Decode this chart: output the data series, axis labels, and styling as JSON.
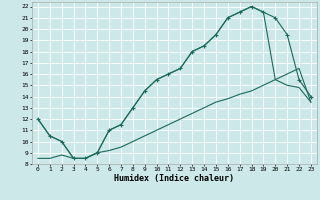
{
  "xlabel": "Humidex (Indice chaleur)",
  "bg_color": "#cce8e8",
  "grid_color": "#ffffff",
  "line_color": "#1a6b5a",
  "xlim": [
    -0.5,
    23.5
  ],
  "ylim": [
    8,
    22.4
  ],
  "xticks": [
    0,
    1,
    2,
    3,
    4,
    5,
    6,
    7,
    8,
    9,
    10,
    11,
    12,
    13,
    14,
    15,
    16,
    17,
    18,
    19,
    20,
    21,
    22,
    23
  ],
  "yticks": [
    8,
    9,
    10,
    11,
    12,
    13,
    14,
    15,
    16,
    17,
    18,
    19,
    20,
    21,
    22
  ],
  "line1_x": [
    0,
    1,
    2,
    3,
    4,
    5,
    6,
    7,
    8,
    9,
    10,
    11,
    12,
    13,
    14,
    15,
    16,
    17,
    18,
    19,
    20,
    21,
    22,
    23
  ],
  "line1_y": [
    12,
    10.5,
    10,
    8.5,
    8.5,
    9.0,
    11.0,
    11.5,
    13.0,
    14.5,
    15.5,
    16.0,
    16.5,
    18.0,
    18.5,
    19.5,
    21.0,
    21.5,
    22.0,
    21.5,
    21.0,
    19.5,
    15.5,
    14.0
  ],
  "line2_x": [
    0,
    1,
    2,
    3,
    4,
    5,
    6,
    7,
    8,
    9,
    10,
    11,
    12,
    13,
    14,
    15,
    16,
    17,
    18,
    19,
    20,
    21,
    22,
    23
  ],
  "line2_y": [
    12,
    10.5,
    10,
    8.5,
    8.5,
    9.0,
    11.0,
    11.5,
    13.0,
    14.5,
    15.5,
    16.0,
    16.5,
    18.0,
    18.5,
    19.5,
    21.0,
    21.5,
    22.0,
    21.5,
    15.5,
    15.0,
    14.8,
    13.5
  ],
  "line3_x": [
    0,
    1,
    2,
    3,
    4,
    5,
    6,
    7,
    8,
    9,
    10,
    11,
    12,
    13,
    14,
    15,
    16,
    17,
    18,
    19,
    20,
    21,
    22,
    23
  ],
  "line3_y": [
    8.5,
    8.5,
    8.8,
    8.5,
    8.5,
    9.0,
    9.2,
    9.5,
    10.0,
    10.5,
    11.0,
    11.5,
    12.0,
    12.5,
    13.0,
    13.5,
    13.8,
    14.2,
    14.5,
    15.0,
    15.5,
    16.0,
    16.5,
    13.5
  ]
}
